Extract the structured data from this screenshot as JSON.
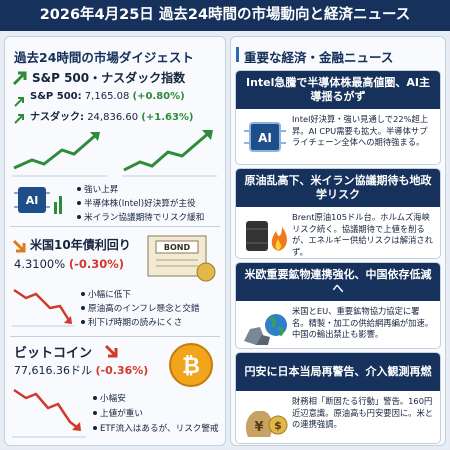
{
  "header": {
    "title": "2026年4月25日 過去24時間の市場動向と経済ニュース"
  },
  "market": {
    "title": "過去24時間の市場ダイジェスト",
    "sections": [
      {
        "title": "S&P 500・ナスダック指数",
        "lines": [
          {
            "label": "S&P 500:",
            "value": "7,165.08",
            "change": "(+0.80%)"
          },
          {
            "label": "ナスダック:",
            "value": "24,836.60",
            "change": "(+1.63%)"
          }
        ],
        "icon_label": "AI",
        "bullets": [
          "強い上昇",
          "半導体株(Intel)好決算が主役",
          "米イラン協議期待でリスク緩和"
        ]
      },
      {
        "title": "米国10年債利回り",
        "lines": [
          {
            "value": "4.3100%",
            "change": "(-0.30%)"
          }
        ],
        "icon_label": "BOND",
        "bullets": [
          "小幅に低下",
          "原油高のインフレ懸念と交錯",
          "利下げ時期の読みにくさ"
        ]
      },
      {
        "title": "ビットコイン",
        "lines": [
          {
            "value": "77,616.36ドル",
            "change": "(-0.36%)"
          }
        ],
        "icon_label": "₿",
        "bullets": [
          "小幅安",
          "上値が重い",
          "ETF流入はあるが、リスク警戒"
        ]
      }
    ]
  },
  "news": {
    "title": "重要な経済・金融ニュース",
    "items": [
      {
        "title": "Intel急騰で半導体株最高値圏、AI主導揺るがず",
        "icon_label": "AI",
        "body": "Intel好決算・強い見通しで22%超上昇。AI CPU需要も拡大。半導体サプライチェーン全体への期待強まる。"
      },
      {
        "title": "原油乱高下、米イラン協議期待も地政学リスク",
        "body": "Brent原油105ドル台。ホルムズ海峡リスク続く。協議期待で上値を削るが、エネルギー供給リスクは解消されず。"
      },
      {
        "title": "米欧重要鉱物連携強化、中国依存低減へ",
        "body": "米国とEU、重要鉱物協力協定に署名。精製・加工の供給網再編が加速。中国の輸出禁止も影響。"
      },
      {
        "title": "円安に日本当局再警告、介入観測再燃",
        "icon_labels": [
          "¥",
          "$"
        ],
        "body": "財務相「断固たる行動」警告。160円近辺意識。原油高も円安要因に。米との連携強調。"
      }
    ]
  }
}
